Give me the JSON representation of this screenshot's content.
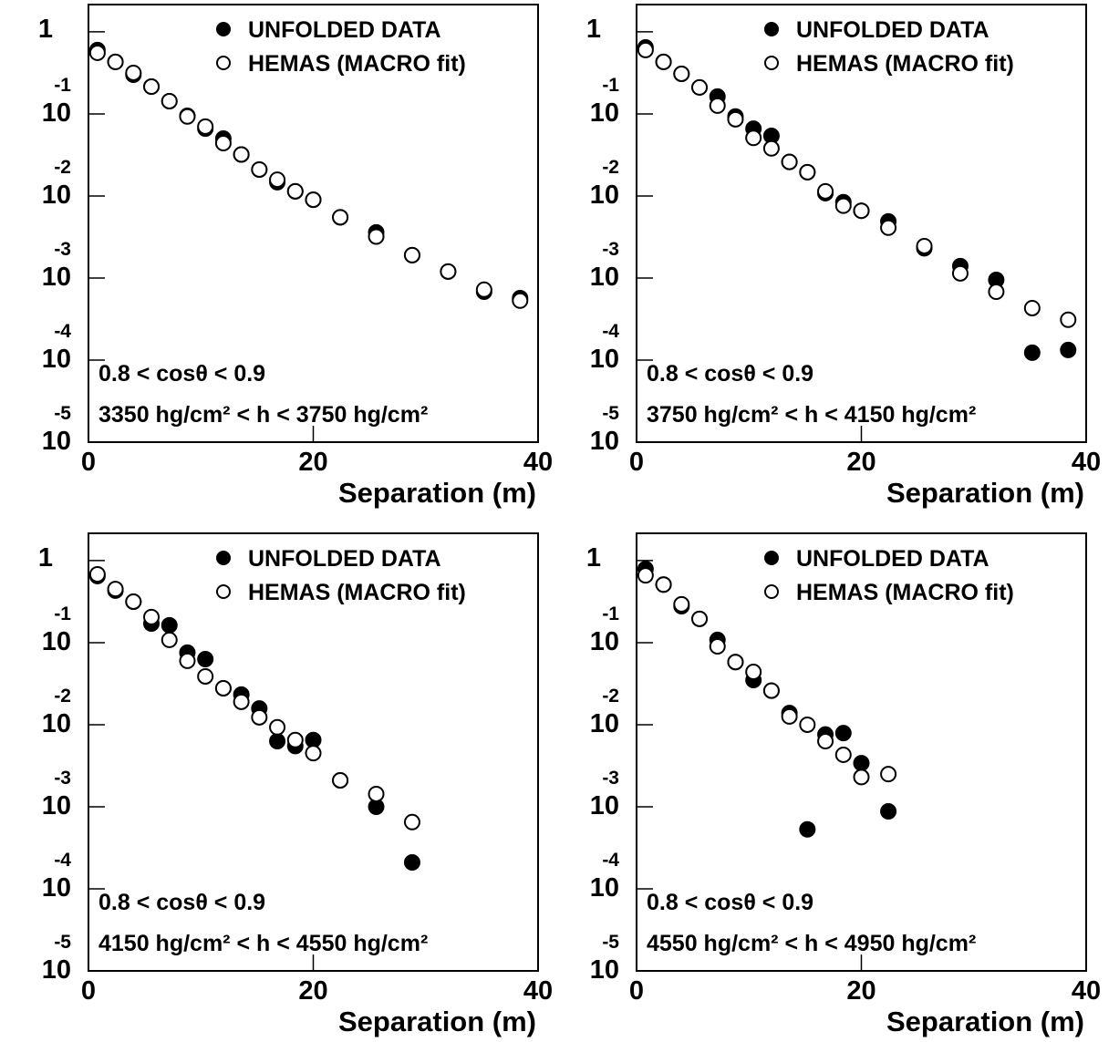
{
  "chart_data": [
    {
      "type": "scatter",
      "log_y": true,
      "x_label": "Separation (m)",
      "annotations": [
        "0.8 < cosθ < 0.9",
        "3350 hg/cm² < h < 3750 hg/cm²"
      ],
      "x": [
        0.8,
        2.4,
        4,
        5.6,
        7.2,
        8.8,
        10.4,
        12,
        13.6,
        15.2,
        16.8,
        18.4,
        20,
        22.4,
        25.6,
        28.8,
        32,
        35.2,
        38.4
      ],
      "series": [
        {
          "name": "UNFOLDED DATA",
          "color": "#000000",
          "marker": "filled",
          "values": [
            0.6,
            0.43,
            0.3,
            0.215,
            0.143,
            0.095,
            0.066,
            0.05,
            0.032,
            0.021,
            0.0147,
            0.0114,
            0.009,
            0.0055,
            0.0036,
            0.0019,
            0.0012,
            0.00068,
            0.00057
          ]
        },
        {
          "name": "HEMAS (MACRO fit)",
          "color": "#000000",
          "marker": "open",
          "values": [
            0.555,
            0.43,
            0.316,
            0.215,
            0.143,
            0.093,
            0.07,
            0.044,
            0.032,
            0.021,
            0.0158,
            0.0114,
            0.009,
            0.0055,
            0.0032,
            0.0019,
            0.0012,
            0.00072,
            0.00053
          ]
        }
      ],
      "xlim": [
        0,
        40
      ],
      "xticks": [
        0,
        20,
        40
      ],
      "ylim": [
        1e-05,
        2.15
      ],
      "yticks": [
        {
          "value": 1e-05,
          "label": "10",
          "exponent": "-5"
        },
        {
          "value": 0.0001,
          "label": "10",
          "exponent": "-4"
        },
        {
          "value": 0.001,
          "label": "10",
          "exponent": "-3"
        },
        {
          "value": 0.01,
          "label": "10",
          "exponent": "-2"
        },
        {
          "value": 0.1,
          "label": "10",
          "exponent": "-1"
        },
        1
      ]
    },
    {
      "type": "scatter",
      "log_y": true,
      "x_label": "Separation (m)",
      "annotations": [
        "0.8 < cosθ < 0.9",
        "3750 hg/cm² < h < 4150 hg/cm²"
      ],
      "x": [
        0.8,
        2.4,
        4,
        5.6,
        7.2,
        8.8,
        10.4,
        12,
        13.6,
        15.2,
        16.8,
        18.4,
        20,
        22.4,
        25.6,
        28.8,
        32,
        35.2,
        38.4
      ],
      "series": [
        {
          "name": "UNFOLDED DATA",
          "color": "#000000",
          "marker": "filled",
          "values": [
            0.647,
            0.43,
            0.308,
            0.21,
            0.163,
            0.093,
            0.066,
            0.054,
            0.026,
            0.0195,
            0.0108,
            0.0084,
            0.0066,
            0.0049,
            0.0023,
            0.0014,
            0.00095,
            0.000123,
            0.000133
          ]
        },
        {
          "name": "HEMAS (MACRO fit)",
          "color": "#000000",
          "marker": "open",
          "values": [
            0.6,
            0.43,
            0.308,
            0.21,
            0.126,
            0.086,
            0.051,
            0.038,
            0.026,
            0.0195,
            0.0114,
            0.0076,
            0.0066,
            0.0041,
            0.00245,
            0.00114,
            0.00068,
            0.00043,
            0.00031
          ]
        }
      ],
      "xlim": [
        0,
        40
      ],
      "xticks": [
        0,
        20,
        40
      ],
      "ylim": [
        1e-05,
        2.15
      ],
      "yticks": [
        {
          "value": 1e-05,
          "label": "10",
          "exponent": "-5"
        },
        {
          "value": 0.0001,
          "label": "10",
          "exponent": "-4"
        },
        {
          "value": 0.001,
          "label": "10",
          "exponent": "-3"
        },
        {
          "value": 0.01,
          "label": "10",
          "exponent": "-2"
        },
        {
          "value": 0.1,
          "label": "10",
          "exponent": "-1"
        },
        1
      ]
    },
    {
      "type": "scatter",
      "log_y": true,
      "x_label": "Separation (m)",
      "annotations": [
        "0.8 < cosθ < 0.9",
        "4150 hg/cm² < h < 4550 hg/cm²"
      ],
      "x": [
        0.8,
        2.4,
        4,
        5.6,
        7.2,
        8.8,
        10.4,
        12,
        13.6,
        15.2,
        16.8,
        18.4,
        20,
        22.4,
        25.6,
        28.8
      ],
      "series": [
        {
          "name": "UNFOLDED DATA",
          "color": "#000000",
          "marker": "filled",
          "values": [
            0.647,
            0.43,
            0.316,
            0.171,
            0.163,
            0.0755,
            0.063,
            0.0278,
            0.0233,
            0.0158,
            0.0063,
            0.0055,
            0.0065,
            0.0021,
            0.001,
            0.00021
          ]
        },
        {
          "name": "HEMAS (MACRO fit)",
          "color": "#000000",
          "marker": "open",
          "values": [
            0.68,
            0.45,
            0.316,
            0.205,
            0.108,
            0.06,
            0.0388,
            0.0278,
            0.019,
            0.0123,
            0.0093,
            0.0065,
            0.0045,
            0.0021,
            0.00143,
            0.00065
          ]
        }
      ],
      "xlim": [
        0,
        40
      ],
      "xticks": [
        0,
        20,
        40
      ],
      "ylim": [
        1e-05,
        2.15
      ],
      "yticks": [
        {
          "value": 1e-05,
          "label": "10",
          "exponent": "-5"
        },
        {
          "value": 0.0001,
          "label": "10",
          "exponent": "-4"
        },
        {
          "value": 0.001,
          "label": "10",
          "exponent": "-3"
        },
        {
          "value": 0.01,
          "label": "10",
          "exponent": "-2"
        },
        {
          "value": 0.1,
          "label": "10",
          "exponent": "-1"
        },
        1
      ]
    },
    {
      "type": "scatter",
      "log_y": true,
      "x_label": "Separation (m)",
      "annotations": [
        "0.8 < cosθ < 0.9",
        "4550 hg/cm² < h < 4950 hg/cm²"
      ],
      "x": [
        0.8,
        2.4,
        4,
        5.6,
        7.2,
        8.8,
        10.4,
        12,
        13.6,
        15.2,
        16.8,
        18.4,
        20,
        22.4
      ],
      "series": [
        {
          "name": "UNFOLDED DATA",
          "color": "#000000",
          "marker": "filled",
          "values": [
            0.79,
            0.51,
            0.278,
            0.195,
            0.108,
            0.058,
            0.035,
            0.026,
            0.0139,
            0.00053,
            0.0076,
            0.0079,
            0.0034,
            0.00088
          ]
        },
        {
          "name": "HEMAS (MACRO fit)",
          "color": "#000000",
          "marker": "open",
          "values": [
            0.66,
            0.51,
            0.293,
            0.195,
            0.09,
            0.058,
            0.044,
            0.026,
            0.0126,
            0.01,
            0.0063,
            0.0043,
            0.0023,
            0.0025
          ]
        }
      ],
      "xlim": [
        0,
        40
      ],
      "xticks": [
        0,
        20,
        40
      ],
      "ylim": [
        1e-05,
        2.15
      ],
      "yticks": [
        {
          "value": 1e-05,
          "label": "10",
          "exponent": "-5"
        },
        {
          "value": 0.0001,
          "label": "10",
          "exponent": "-4"
        },
        {
          "value": 0.001,
          "label": "10",
          "exponent": "-3"
        },
        {
          "value": 0.01,
          "label": "10",
          "exponent": "-2"
        },
        {
          "value": 0.1,
          "label": "10",
          "exponent": "-1"
        },
        1
      ]
    }
  ]
}
